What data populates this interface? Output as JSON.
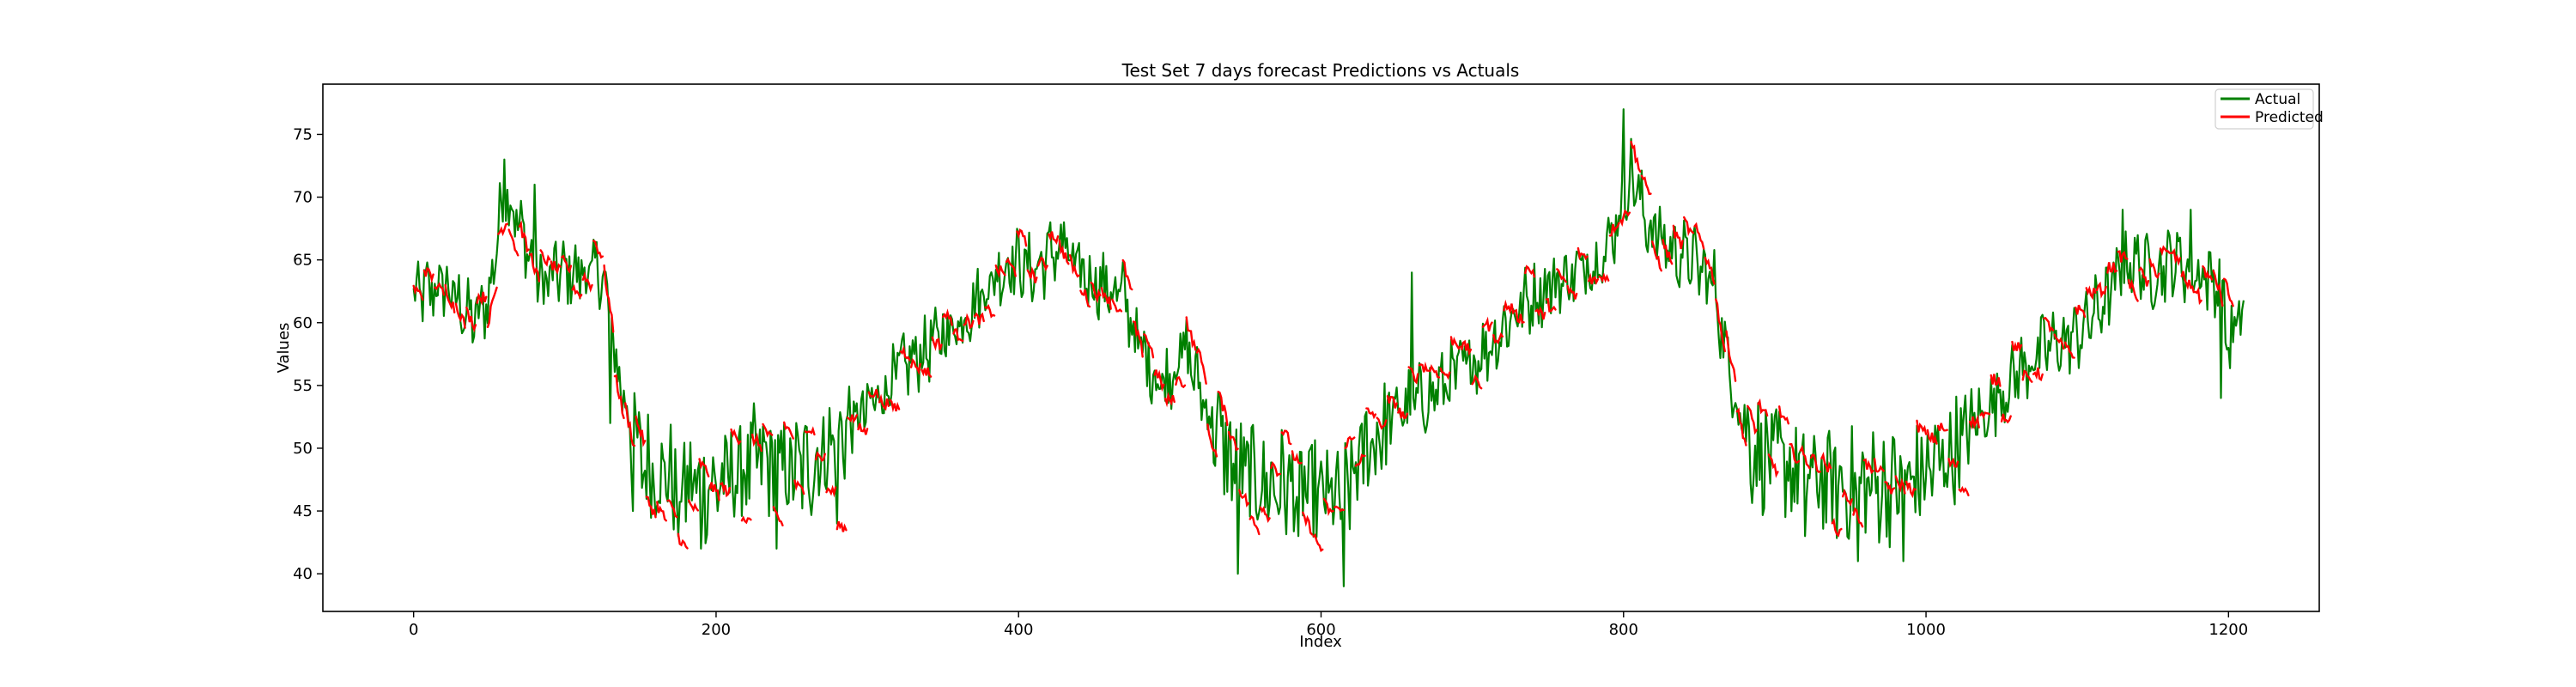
{
  "chart_data": {
    "type": "line",
    "title": "Test Set 7 days forecast Predictions vs Actuals",
    "xlabel": "Index",
    "ylabel": "Values",
    "xlim": [
      -60,
      1260
    ],
    "ylim": [
      37,
      79
    ],
    "xticks": [
      0,
      200,
      400,
      600,
      800,
      1000,
      1200
    ],
    "yticks": [
      40,
      45,
      50,
      55,
      60,
      65,
      70,
      75
    ],
    "grid": false,
    "legend_position": "top-right",
    "forecast_horizon_days": 7,
    "series": [
      {
        "name": "Actual",
        "color": "#008000",
        "x": [
          0,
          20,
          40,
          50,
          60,
          75,
          85,
          95,
          110,
          125,
          135,
          150,
          165,
          180,
          200,
          215,
          230,
          250,
          265,
          280,
          300,
          320,
          340,
          360,
          380,
          395,
          410,
          425,
          440,
          455,
          470,
          480,
          495,
          510,
          525,
          540,
          550,
          565,
          580,
          600,
          615,
          630,
          650,
          670,
          690,
          710,
          730,
          750,
          770,
          790,
          805,
          815,
          830,
          845,
          860,
          870,
          885,
          900,
          920,
          940,
          960,
          980,
          1000,
          1020,
          1040,
          1060,
          1080,
          1100,
          1120,
          1135,
          1150,
          1165,
          1180,
          1195,
          1200,
          1210
        ],
        "values": [
          62,
          63,
          60,
          62,
          71,
          66,
          63,
          64,
          64,
          64,
          56,
          49,
          48,
          47,
          47,
          48,
          49,
          48,
          49,
          51,
          53,
          56,
          58,
          60,
          63,
          65,
          64,
          66,
          64,
          63,
          62,
          58,
          55,
          58,
          53,
          49,
          48,
          47,
          47,
          46,
          46,
          50,
          53,
          54,
          56,
          58,
          61,
          63,
          64,
          66,
          72,
          68,
          66,
          65,
          63,
          56,
          50,
          49,
          48,
          47,
          47,
          47,
          48,
          50,
          53,
          56,
          58,
          59,
          62,
          65,
          64,
          65,
          64,
          63,
          58,
          61
        ],
        "dip_points": [
          [
            130,
            52
          ],
          [
            145,
            45
          ],
          [
            175,
            43
          ],
          [
            190,
            42
          ],
          [
            240,
            42
          ],
          [
            280,
            44
          ],
          [
            545,
            40
          ],
          [
            585,
            43
          ],
          [
            615,
            39
          ],
          [
            675,
            53
          ],
          [
            920,
            43
          ],
          [
            955,
            41
          ],
          [
            985,
            41
          ],
          [
            1195,
            54
          ]
        ],
        "spike_points": [
          [
            60,
            73
          ],
          [
            80,
            71
          ],
          [
            400,
            67
          ],
          [
            430,
            68
          ],
          [
            660,
            64
          ],
          [
            800,
            77
          ],
          [
            1130,
            69
          ],
          [
            1175,
            69
          ]
        ]
      },
      {
        "name": "Predicted",
        "color": "#ff0000",
        "segment_length_days": 7
      }
    ]
  },
  "legend": {
    "actual_label": "Actual",
    "predicted_label": "Predicted"
  }
}
